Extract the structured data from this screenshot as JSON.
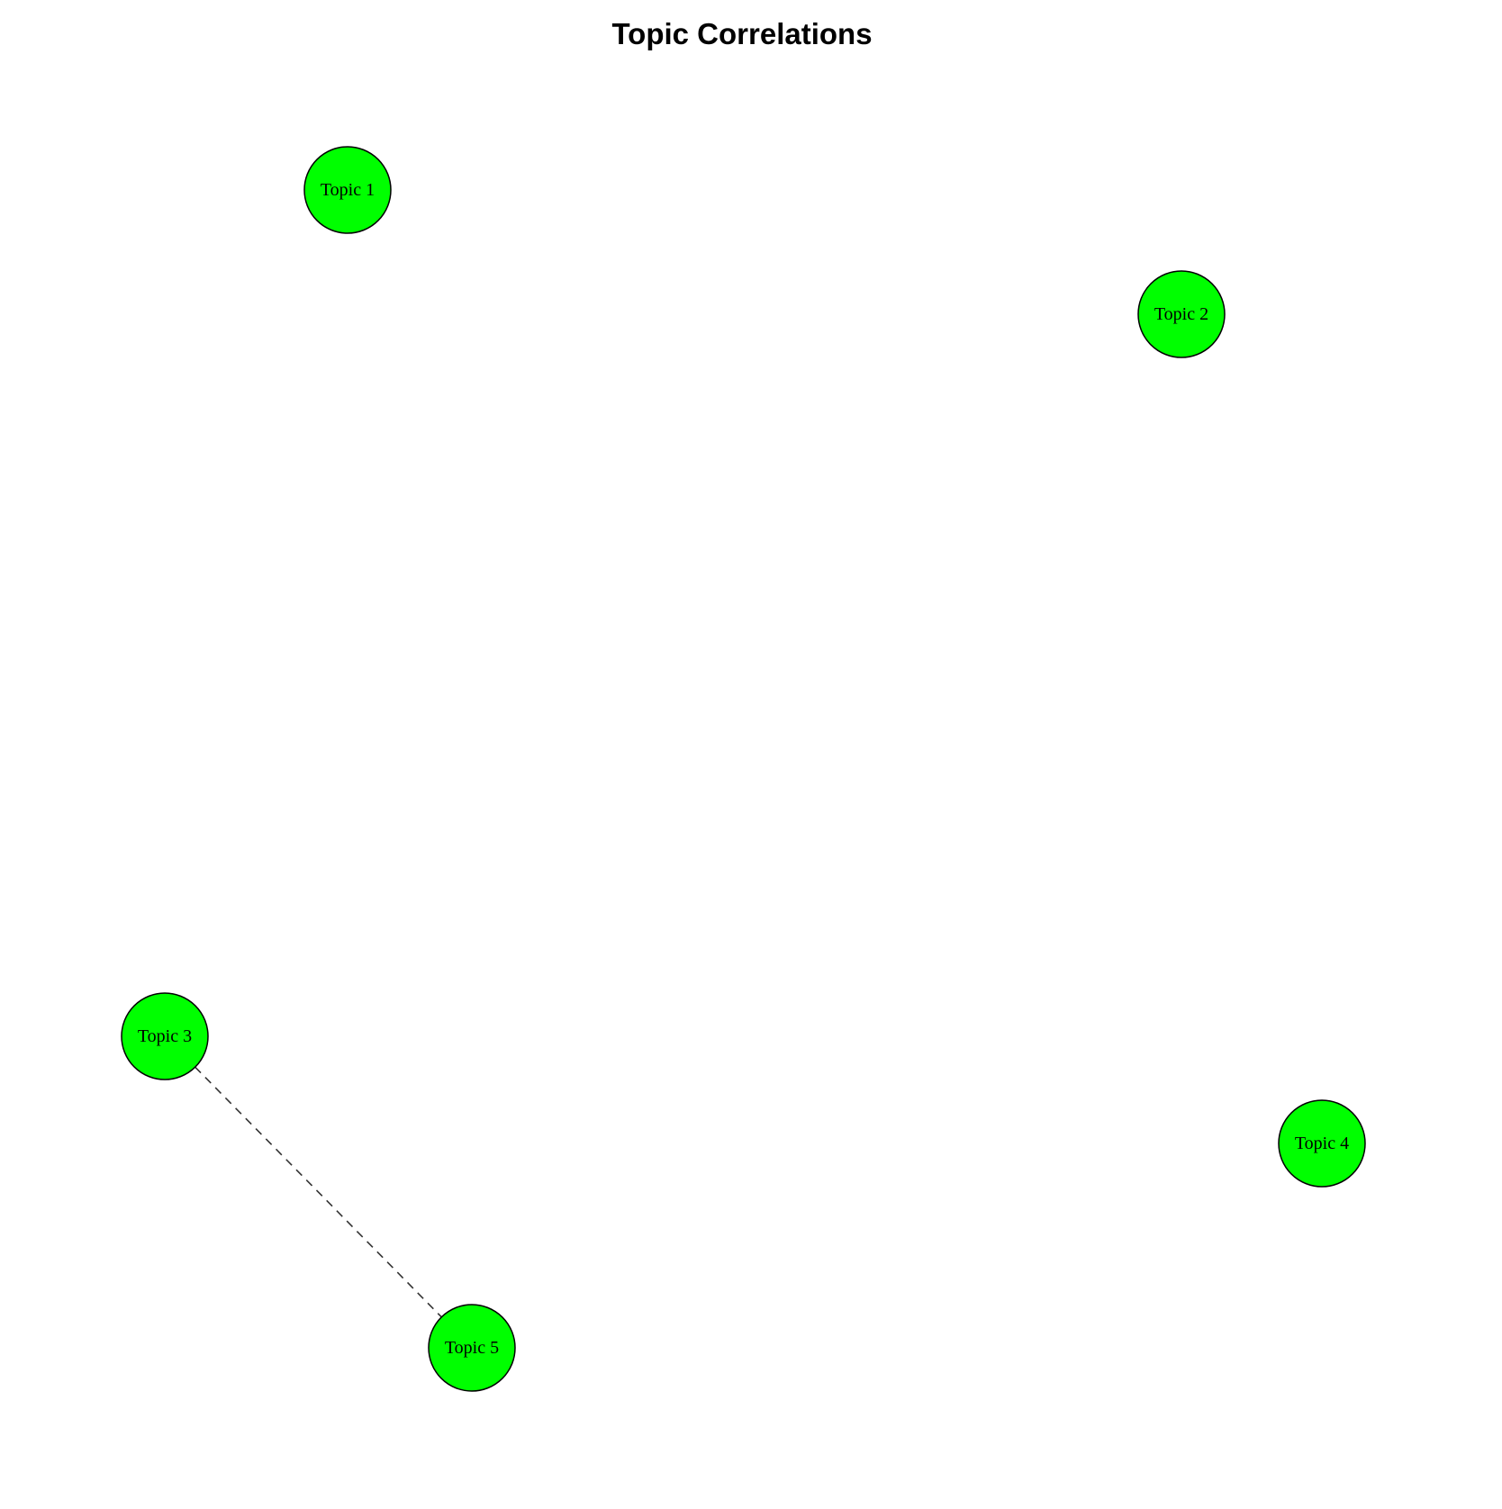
{
  "title": "Topic Correlations",
  "colors": {
    "node_fill": "#00ff00",
    "node_stroke": "#000000",
    "edge": "#333333"
  },
  "nodes": [
    {
      "id": "t1",
      "label": "Topic 1"
    },
    {
      "id": "t2",
      "label": "Topic 2"
    },
    {
      "id": "t3",
      "label": "Topic 3"
    },
    {
      "id": "t4",
      "label": "Topic 4"
    },
    {
      "id": "t5",
      "label": "Topic 5"
    }
  ],
  "edges": [
    {
      "from": "t3",
      "to": "t5",
      "style": "dashed"
    }
  ]
}
